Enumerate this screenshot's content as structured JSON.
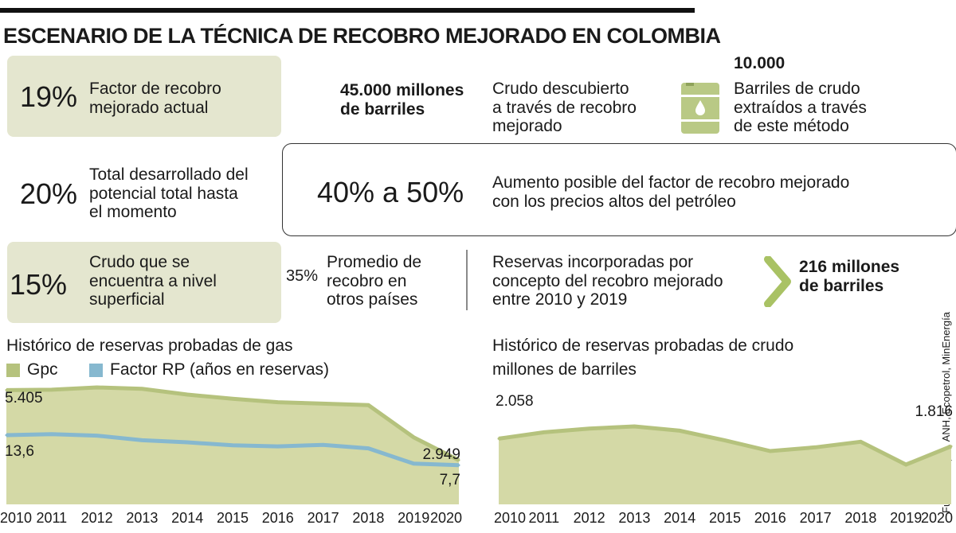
{
  "headline": "ESCENARIO DE LA TÉCNICA DE RECOBRO MEJORADO EN COLOMBIA",
  "stats": {
    "recovery_factor": {
      "value": "19%",
      "label_1": "Factor de recobro",
      "label_2": "mejorado actual"
    },
    "crude_discovered": {
      "amount_1": "45.000 millones",
      "amount_2": "de barriles",
      "label_1": "Crudo descubierto",
      "label_2": "a través de recobro",
      "label_3": "mejorado"
    },
    "barrels_extracted": {
      "amount": "10.000",
      "label_1": "Barriles de crudo",
      "label_2": "extraídos a través",
      "label_3": "de este método",
      "icon": "barrel-icon"
    },
    "developed_total": {
      "value": "20%",
      "label_1": "Total desarrollado del",
      "label_2": "potencial total hasta",
      "label_3": "el momento"
    },
    "possible_increase": {
      "value": "40% a 50%",
      "label_1": "Aumento posible del factor de recobro mejorado",
      "label_2": "con los precios altos del petróleo"
    },
    "surface_crude": {
      "value": "15%",
      "label_1": "Crudo que se",
      "label_2": "encuentra a nivel",
      "label_3": "superficial"
    },
    "other_countries": {
      "value": "35%",
      "label_1": "Promedio de",
      "label_2": "recobro en",
      "label_3": "otros países"
    },
    "reserves_incorporated": {
      "label_1": "Reservas incorporadas por",
      "label_2": "concepto del recobro mejorado",
      "label_3": "entre 2010 y 2019",
      "amount_1": "216 millones",
      "amount_2": "de barriles",
      "icon": "chevron-right-icon"
    }
  },
  "source": "Fuente: Acipet, ANH, Ecopetrol, MinEnergía",
  "colors": {
    "green_fill": "#d4d9a6",
    "green_line": "#b5c27d",
    "blue_line": "#86b8cf",
    "box_green": "#e4e6cf",
    "accent_green": "#a9c264"
  },
  "chart_data": [
    {
      "type": "area",
      "title": "Histórico de reservas probadas de gas",
      "x": [
        "2010",
        "2011",
        "2012",
        "2013",
        "2014",
        "2015",
        "2016",
        "2017",
        "2018",
        "2019",
        "2020"
      ],
      "series": [
        {
          "name": "Gpc",
          "type": "area",
          "values": [
            5405,
            5420,
            5500,
            5450,
            5250,
            5100,
            4980,
            4930,
            4880,
            3750,
            2949
          ],
          "first_label": "5.405",
          "last_label": "2.949"
        },
        {
          "name": "Factor RP (años en reservas)",
          "type": "line",
          "values": [
            13.6,
            13.8,
            13.5,
            12.6,
            12.2,
            11.6,
            11.4,
            11.7,
            11.0,
            8.0,
            7.7
          ],
          "first_label": "13,6",
          "last_label": "7,7"
        }
      ],
      "legend": "top-left"
    },
    {
      "type": "area",
      "title": "Histórico de reservas probadas de crudo",
      "subtitle": "millones de barriles",
      "x": [
        "2010",
        "2011",
        "2012",
        "2013",
        "2014",
        "2015",
        "2016",
        "2017",
        "2018",
        "2019",
        "2020"
      ],
      "series": [
        {
          "values": [
            2058,
            2259,
            2377,
            2445,
            2308,
            2002,
            1665,
            1782,
            1958,
            1236,
            1816
          ],
          "first_label": "2.058",
          "last_label": "1.816"
        }
      ]
    }
  ]
}
